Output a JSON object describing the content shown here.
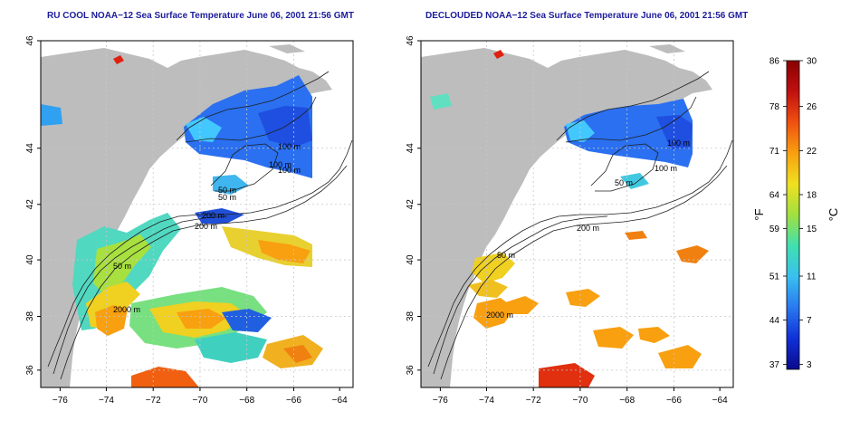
{
  "maps": [
    {
      "title": "RU COOL NOAA−12 Sea Surface Temperature June 06, 2001 21:56 GMT",
      "x_ticks": [
        "−76",
        "−74",
        "−72",
        "−70",
        "−68",
        "−66",
        "−64"
      ],
      "y_ticks": [
        "36",
        "38",
        "40",
        "42",
        "44",
        "46"
      ],
      "contour_labels": [
        "200 m",
        "100 m",
        "100 m",
        "50 m",
        "50 m",
        "200 m",
        "100 m",
        "50 m",
        "2000 m"
      ]
    },
    {
      "title": "DECLOUDED NOAA−12 Sea Surface Temperature June 06, 2001 21:56 GMT",
      "x_ticks": [
        "−76",
        "−74",
        "−72",
        "−70",
        "−68",
        "−66",
        "−64"
      ],
      "y_ticks": [
        "36",
        "38",
        "40",
        "42",
        "44",
        "46"
      ],
      "contour_labels": [
        "100 m",
        "100 m",
        "50 m",
        "200 m",
        "50 m",
        "2000 m"
      ]
    }
  ],
  "colorbar": {
    "fahrenheit_label": "°F",
    "celsius_label": "°C",
    "fahrenheit_ticks": [
      "86",
      "78",
      "71",
      "64",
      "59",
      "51",
      "44",
      "37"
    ],
    "celsius_ticks": [
      "30",
      "26",
      "22",
      "18",
      "15",
      "11",
      "7",
      "3"
    ],
    "colors": [
      "#0a0a8c",
      "#1030d8",
      "#2a78f0",
      "#38c0f0",
      "#40e0b0",
      "#a0e040",
      "#f0e020",
      "#f8a010",
      "#f05010",
      "#c01010",
      "#8a0000"
    ]
  }
}
